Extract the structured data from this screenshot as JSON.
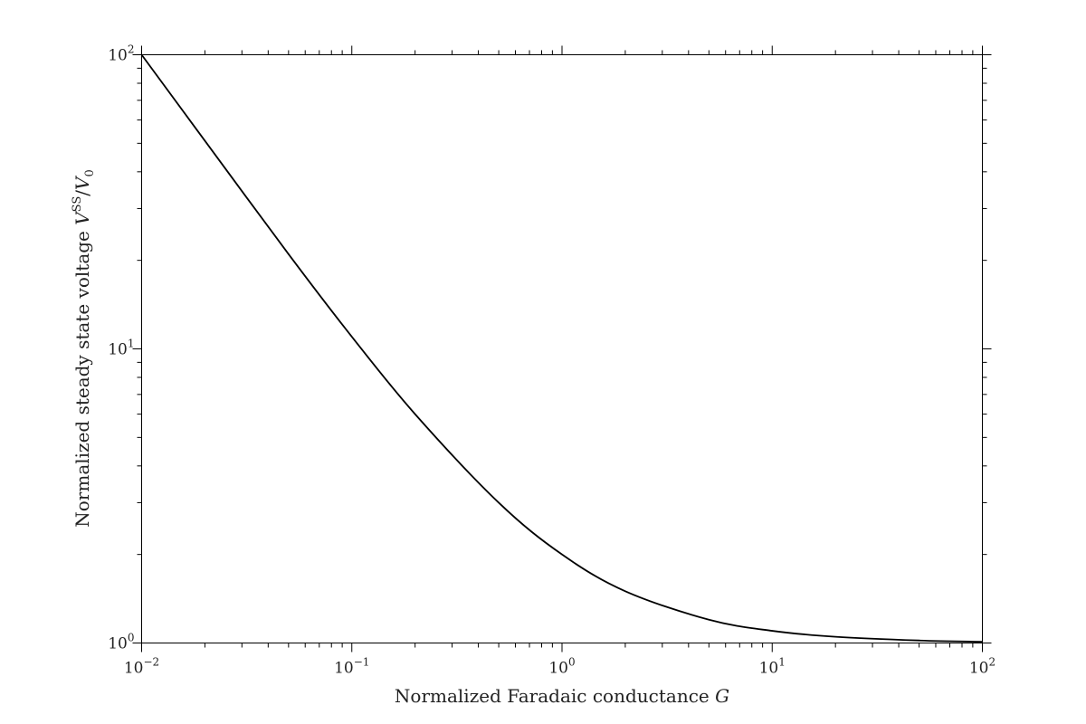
{
  "chart_data": {
    "type": "line",
    "title": "",
    "x_scale": "log",
    "y_scale": "log",
    "xlim": [
      0.01,
      100
    ],
    "ylim": [
      1,
      100
    ],
    "grid": false,
    "xlabel": {
      "prefix": "Normalized Faradaic conductance ",
      "symbol": "G"
    },
    "ylabel": {
      "prefix": "Normalized steady state voltage ",
      "V": "V",
      "superscript": "SS",
      "slash": "/",
      "V0": "V",
      "subscript": "0"
    },
    "x_ticks": [
      {
        "value": 0.01,
        "base": "10",
        "exp": "−2"
      },
      {
        "value": 0.1,
        "base": "10",
        "exp": "−1"
      },
      {
        "value": 1,
        "base": "10",
        "exp": "0"
      },
      {
        "value": 10,
        "base": "10",
        "exp": "1"
      },
      {
        "value": 100,
        "base": "10",
        "exp": "2"
      }
    ],
    "y_ticks": [
      {
        "value": 1,
        "base": "10",
        "exp": "0"
      },
      {
        "value": 10,
        "base": "10",
        "exp": "1"
      },
      {
        "value": 100,
        "base": "10",
        "exp": "2"
      }
    ],
    "series": [
      {
        "color": "#000000",
        "x": [
          0.01,
          0.02,
          0.05,
          0.1,
          0.2,
          0.5,
          1,
          2,
          5,
          10,
          20,
          50,
          100
        ],
        "y": [
          100,
          51,
          21,
          11,
          6,
          3,
          2,
          1.5,
          1.2,
          1.1,
          1.05,
          1.02,
          1.01
        ]
      }
    ]
  }
}
